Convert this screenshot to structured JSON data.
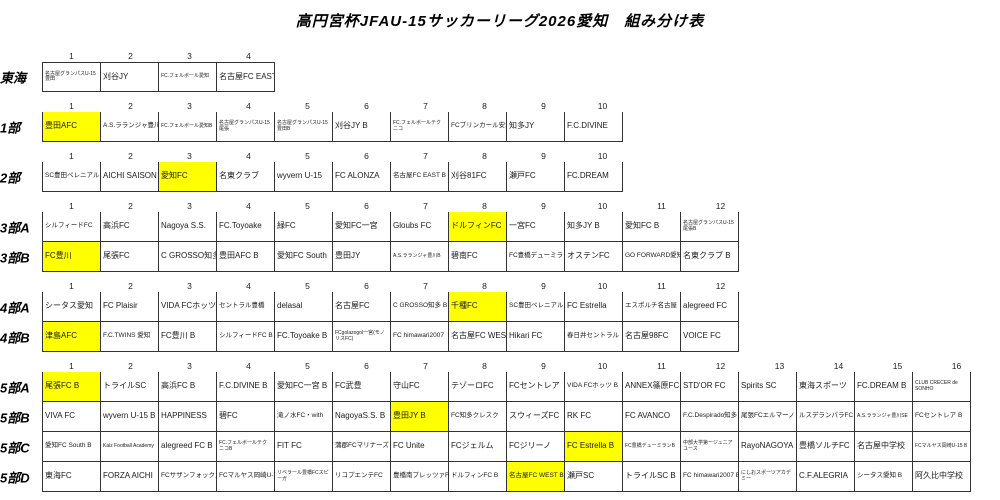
{
  "title": "高円宮杯JFAU-15サッカーリーグ2026愛知　組み分け表",
  "colors": {
    "highlight": "#ffff00",
    "border": "#333333",
    "background": "#ffffff"
  },
  "groups": [
    {
      "label": "東海",
      "numbers": true,
      "gap": true,
      "teams": [
        {
          "name": "名古屋グランパスU-15豊田"
        },
        {
          "name": "刈谷JY"
        },
        {
          "name": "FC.フェルボール愛知"
        },
        {
          "name": "名古屋FC EAST"
        }
      ]
    },
    {
      "label": "1部",
      "numbers": true,
      "gap": true,
      "teams": [
        {
          "name": "豊田AFC",
          "highlight": true
        },
        {
          "name": "A.S.ラランジャ豊川"
        },
        {
          "name": "FC.フェルボール愛知B"
        },
        {
          "name": "名古屋グランパスU-15尾張"
        },
        {
          "name": "名古屋グランパスU-15豊田B"
        },
        {
          "name": "刈谷JY B"
        },
        {
          "name": "FC.フェルボールテクニコ"
        },
        {
          "name": "FCブリンカール安城"
        },
        {
          "name": "知多JY"
        },
        {
          "name": "F.C.DIVINE"
        }
      ]
    },
    {
      "label": "2部",
      "numbers": true,
      "gap": true,
      "teams": [
        {
          "name": "SC豊田ペレニアル"
        },
        {
          "name": "AICHI SAISON"
        },
        {
          "name": "愛知FC",
          "highlight": true
        },
        {
          "name": "名東クラブ"
        },
        {
          "name": "wyvern U-15"
        },
        {
          "name": "FC ALONZA"
        },
        {
          "name": "名古屋FC EAST B"
        },
        {
          "name": "刈谷81FC"
        },
        {
          "name": "瀬戸FC"
        },
        {
          "name": "FC.DREAM"
        }
      ]
    },
    {
      "label": "3部A",
      "numbers": true,
      "gap": true,
      "teams": [
        {
          "name": "シルフィードFC"
        },
        {
          "name": "高浜FC"
        },
        {
          "name": "Nagoya S.S."
        },
        {
          "name": "FC.Toyoake"
        },
        {
          "name": "緑FC"
        },
        {
          "name": "愛知FC一宮"
        },
        {
          "name": "Gloubs FC"
        },
        {
          "name": "ドルフィンFC",
          "highlight": true
        },
        {
          "name": "一宮FC"
        },
        {
          "name": "知多JY B"
        },
        {
          "name": "愛知FC B"
        },
        {
          "name": "名古屋グランパスU-15尾張B"
        }
      ]
    },
    {
      "label": "3部B",
      "numbers": false,
      "gap": false,
      "teams": [
        {
          "name": "FC豊川",
          "highlight": true
        },
        {
          "name": "尾張FC"
        },
        {
          "name": "C GROSSO知多"
        },
        {
          "name": "豊田AFC B"
        },
        {
          "name": "愛知FC South"
        },
        {
          "name": "豊田JY"
        },
        {
          "name": "A.S.ラランジャ豊川B"
        },
        {
          "name": "碧南FC"
        },
        {
          "name": "FC豊橋デューミラン"
        },
        {
          "name": "オステンFC"
        },
        {
          "name": "GO FORWARD愛知"
        },
        {
          "name": "名東クラブ B"
        }
      ]
    },
    {
      "label": "4部A",
      "numbers": true,
      "gap": true,
      "teams": [
        {
          "name": "シータス愛知"
        },
        {
          "name": "FC Plaisir"
        },
        {
          "name": "VIDA FCホッツ"
        },
        {
          "name": "セントラル豊橋"
        },
        {
          "name": "delasal"
        },
        {
          "name": "名古屋FC"
        },
        {
          "name": "C GROSSO知多 B"
        },
        {
          "name": "千種FC",
          "highlight": true
        },
        {
          "name": "SC豊田ペレニアルB"
        },
        {
          "name": "FC Estrella"
        },
        {
          "name": "エスポルチ名古屋"
        },
        {
          "name": "alegreed FC"
        }
      ]
    },
    {
      "label": "4部B",
      "numbers": false,
      "gap": false,
      "teams": [
        {
          "name": "津島AFC",
          "highlight": true
        },
        {
          "name": "F.C.TWINS 愛知"
        },
        {
          "name": "FC豊川 B"
        },
        {
          "name": "シルフィードFC B"
        },
        {
          "name": "FC.Toyoake B"
        },
        {
          "name": "FCgolazogol一宮(モノリスFC)"
        },
        {
          "name": "FC himawari2007"
        },
        {
          "name": "名古屋FC WEST"
        },
        {
          "name": "Hikari FC"
        },
        {
          "name": "春日井セントラル"
        },
        {
          "name": "名古屋98FC"
        },
        {
          "name": "VOICE FC"
        }
      ]
    },
    {
      "label": "5部A",
      "numbers": true,
      "gap": true,
      "teams": [
        {
          "name": "尾張FC B",
          "highlight": true
        },
        {
          "name": "トライルSC"
        },
        {
          "name": "高浜FC B"
        },
        {
          "name": "F.C.DIVINE B"
        },
        {
          "name": "愛知FC一宮 B"
        },
        {
          "name": "FC武豊"
        },
        {
          "name": "守山FC"
        },
        {
          "name": "テゾーロFC"
        },
        {
          "name": "FCセントレア"
        },
        {
          "name": "VIDA FCホッツ B"
        },
        {
          "name": "ANNEX篠原FC"
        },
        {
          "name": "STD'OR FC"
        },
        {
          "name": "Spirits SC"
        },
        {
          "name": "東海スポーツ"
        },
        {
          "name": "FC.DREAM B"
        },
        {
          "name": "CLUB CRECER de SONHO"
        }
      ]
    },
    {
      "label": "5部B",
      "numbers": false,
      "gap": false,
      "teams": [
        {
          "name": "VIVA FC"
        },
        {
          "name": "wyvern U-15 B"
        },
        {
          "name": "HAPPINESS"
        },
        {
          "name": "碧FC"
        },
        {
          "name": "滝ノ水FC・with"
        },
        {
          "name": "NagoyaS.S. B"
        },
        {
          "name": "豊田JY B",
          "highlight": true
        },
        {
          "name": "FC知多クレスク"
        },
        {
          "name": "スウィーズFC"
        },
        {
          "name": "RK FC"
        },
        {
          "name": "FC AVANCO"
        },
        {
          "name": "F.C.Despirado知多"
        },
        {
          "name": "尾張FCエルマーノ"
        },
        {
          "name": "ルスデランパラFC"
        },
        {
          "name": "A.S.ラランジャ豊川SE"
        },
        {
          "name": "FCセントレア B"
        }
      ]
    },
    {
      "label": "5部C",
      "numbers": false,
      "gap": false,
      "teams": [
        {
          "name": "愛知FC South B"
        },
        {
          "name": "Kalz Football Academy"
        },
        {
          "name": "alegreed FC B"
        },
        {
          "name": "FC.フェルボールテクニコB"
        },
        {
          "name": "FIT FC"
        },
        {
          "name": "蒲郡FCマリナーズ"
        },
        {
          "name": "FC Unite"
        },
        {
          "name": "FCジェルム"
        },
        {
          "name": "FCジリーノ"
        },
        {
          "name": "FC Estrella B",
          "highlight": true
        },
        {
          "name": "FC豊橋デューミランB"
        },
        {
          "name": "中部大学第一ジュニアユース"
        },
        {
          "name": "RayoNAGOYA"
        },
        {
          "name": "豊橋ソルチFC"
        },
        {
          "name": "名古屋中学校"
        },
        {
          "name": "FCマルヤス岡崎U-15 B"
        }
      ]
    },
    {
      "label": "5部D",
      "numbers": false,
      "gap": false,
      "teams": [
        {
          "name": "東海FC"
        },
        {
          "name": "FORZA AICHI"
        },
        {
          "name": "FCサザンフォックス"
        },
        {
          "name": "FCマルヤス岡崎U-15"
        },
        {
          "name": "リベラール豊橋FCスピーガ"
        },
        {
          "name": "リコプエンテFC"
        },
        {
          "name": "豊橋南プレッツァFC"
        },
        {
          "name": "ドルフィンFC B"
        },
        {
          "name": "名古屋FC WEST B",
          "highlight": true
        },
        {
          "name": "瀬戸SC"
        },
        {
          "name": "トライルSC B"
        },
        {
          "name": "FC himawari2007 B"
        },
        {
          "name": "にしおスポーツアカデミー"
        },
        {
          "name": "C.F.ALEGRIA"
        },
        {
          "name": "シータス愛知 B"
        },
        {
          "name": "阿久比中学校"
        }
      ]
    }
  ]
}
